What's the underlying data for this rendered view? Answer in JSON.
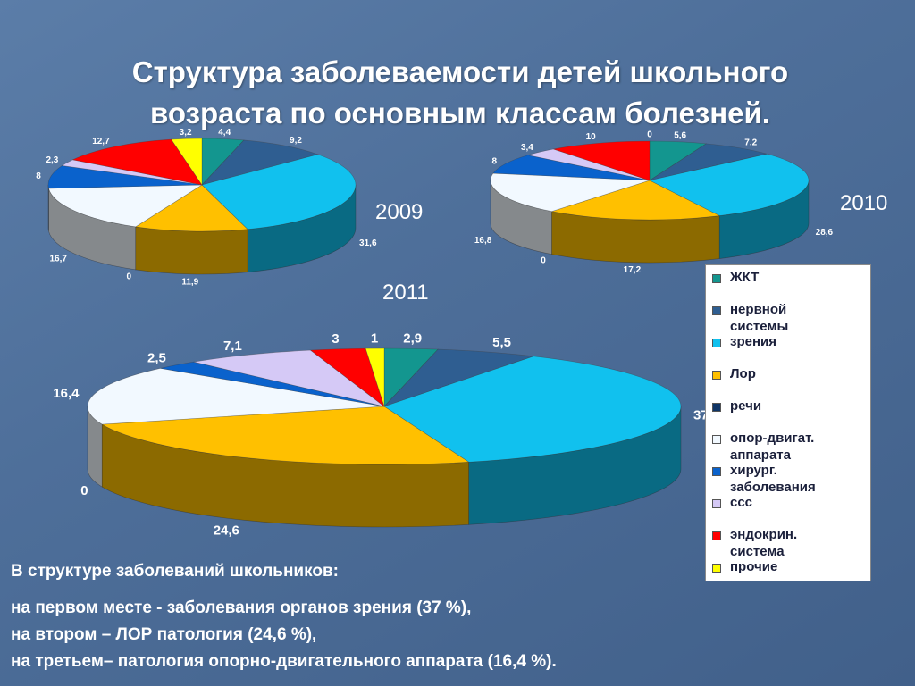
{
  "title": "Структура заболеваемости детей школьного\nвозраста по основным классам болезней.",
  "legend": [
    {
      "label": "ЖКТ",
      "color": "#13968f"
    },
    {
      "label": "нервной\nсистемы",
      "color": "#2f5e91"
    },
    {
      "label": "зрения",
      "color": "#11c1ee"
    },
    {
      "label": "Лор",
      "color": "#ffc000"
    },
    {
      "label": "речи",
      "color": "#0f3566"
    },
    {
      "label": "опор-двигат.\nаппарата",
      "color": "#f2f9ff"
    },
    {
      "label": "хирург.\nзаболевания",
      "color": "#0a62cc"
    },
    {
      "label": "ссс",
      "color": "#d5c9f6"
    },
    {
      "label": "эндокрин.\nсистема",
      "color": "#ff0000"
    },
    {
      "label": "прочие",
      "color": "#ffff00"
    }
  ],
  "chart_data": [
    {
      "type": "pie",
      "title": "2009",
      "categories": [
        "ЖКТ",
        "нервной системы",
        "зрения",
        "Лор",
        "речи",
        "опор-двигат. аппарата",
        "хирург. заболевания",
        "ссс",
        "эндокрин. система",
        "прочие"
      ],
      "values": [
        4.4,
        9.2,
        31.6,
        11.9,
        0,
        16.7,
        8,
        2.3,
        12.7,
        3.2
      ],
      "labels": [
        "4,4",
        "9,2",
        "31,6",
        "11,9",
        "0",
        "16,7",
        "8",
        "2,3",
        "12,7",
        "3,2"
      ]
    },
    {
      "type": "pie",
      "title": "2010",
      "categories": [
        "ЖКТ",
        "нервной системы",
        "зрения",
        "Лор",
        "речи",
        "опор-двигат. аппарата",
        "хирург. заболевания",
        "ссс",
        "эндокрин. система",
        "прочие"
      ],
      "values": [
        5.6,
        7.2,
        28.6,
        17.2,
        0,
        16.8,
        8,
        3.4,
        10,
        0
      ],
      "labels": [
        "5,6",
        "7,2",
        "28,6",
        "17,2",
        "0",
        "16,8",
        "8",
        "3,4",
        "10",
        "0"
      ]
    },
    {
      "type": "pie",
      "title": "2011",
      "categories": [
        "ЖКТ",
        "нервной системы",
        "зрения",
        "Лор",
        "речи",
        "опор-двигат. аппарата",
        "хирург. заболевания",
        "ссс",
        "эндокрин. система",
        "прочие"
      ],
      "values": [
        2.9,
        5.5,
        37,
        24.6,
        0,
        16.4,
        2.5,
        7.1,
        3,
        1
      ],
      "labels": [
        "2,9",
        "5,5",
        "37",
        "24,6",
        "0",
        "16,4",
        "2,5",
        "7,1",
        "3",
        "1"
      ]
    }
  ],
  "summary": {
    "line1": "В структуре заболеваний школьников:",
    "line2": "на первом месте - заболевания органов зрения (37 %),",
    "line3": "на втором – ЛОР патология (24,6 %),",
    "line4": "на третьем– патология опорно-двигательного аппарата (16,4  %)."
  }
}
